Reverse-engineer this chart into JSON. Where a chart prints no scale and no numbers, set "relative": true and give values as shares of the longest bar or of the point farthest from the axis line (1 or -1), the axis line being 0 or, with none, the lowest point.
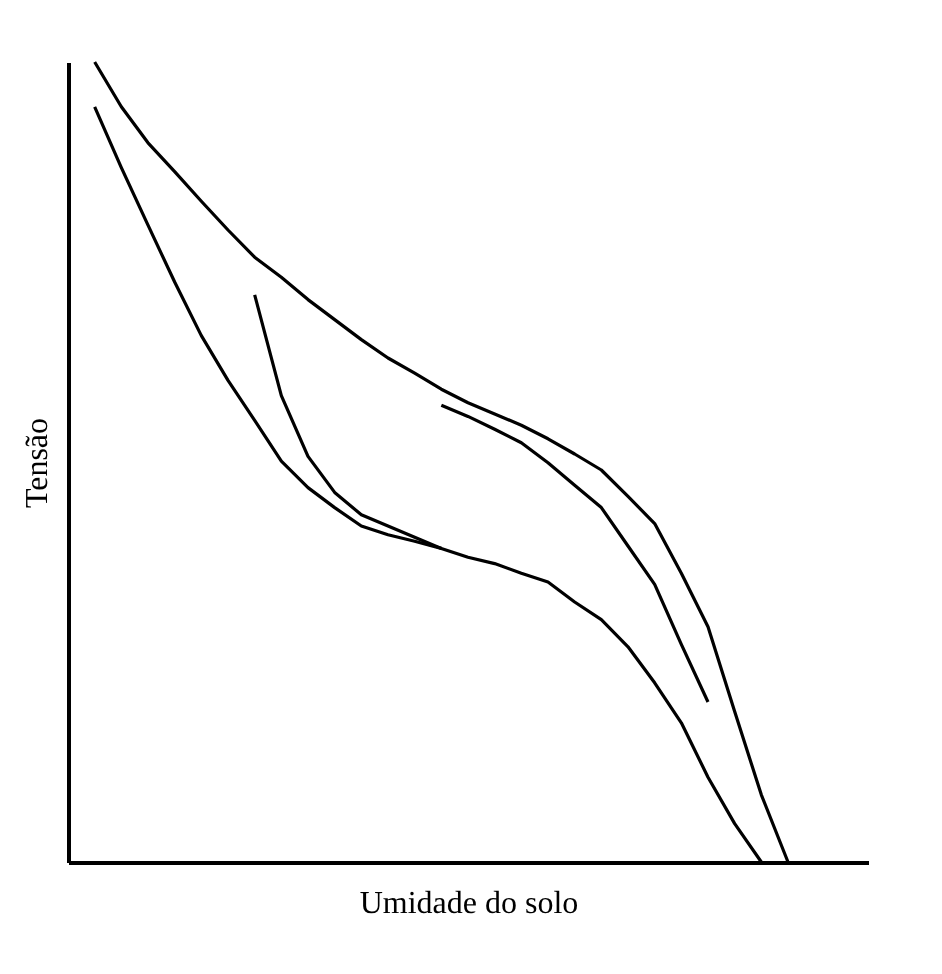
{
  "chart_data": {
    "type": "line",
    "relative": true,
    "xlabel": "Umidade do solo",
    "ylabel": "Tensão",
    "marker": "none",
    "line_style": "solid",
    "grid": false,
    "legend": false,
    "categories": [
      null,
      null,
      null,
      null,
      null,
      null,
      null,
      null,
      null,
      null,
      null,
      null,
      null,
      null,
      null,
      null,
      null,
      null,
      null,
      null,
      null,
      null,
      null,
      null,
      null,
      null,
      null,
      null,
      null,
      null,
      null
    ],
    "series": [
      {
        "color": "#000000",
        "values": [
          null,
          1.0,
          0.944,
          0.899,
          0.863,
          0.826,
          0.79,
          0.756,
          0.731,
          0.703,
          0.678,
          0.653,
          0.63,
          0.611,
          0.591,
          0.574,
          0.56,
          0.546,
          0.529,
          0.51,
          0.49,
          0.457,
          0.423,
          0.361,
          0.294,
          0.188,
          0.084,
          0,
          null,
          null,
          null
        ]
      },
      {
        "color": "#000000",
        "values": [
          null,
          0.944,
          0.868,
          0.796,
          0.725,
          0.658,
          0.602,
          0.552,
          0.501,
          0.468,
          0.443,
          0.42,
          0.409,
          0.401,
          0.392,
          0.381,
          0.373,
          0.361,
          0.35,
          0.325,
          0.303,
          0.269,
          0.224,
          0.174,
          0.106,
          0.048,
          0,
          null,
          null,
          null,
          null
        ]
      },
      {
        "color": "#000000",
        "values": [
          null,
          null,
          null,
          null,
          null,
          null,
          null,
          0.709,
          0.583,
          0.507,
          0.462,
          0.434,
          0.42,
          0.406,
          0.392,
          null,
          null,
          null,
          null,
          null,
          null,
          null,
          null,
          null,
          null,
          null,
          null,
          null,
          null,
          null,
          null
        ]
      },
      {
        "color": "#000000",
        "values": [
          null,
          null,
          null,
          null,
          null,
          null,
          null,
          null,
          null,
          null,
          null,
          null,
          null,
          null,
          0.571,
          0.557,
          0.541,
          0.524,
          0.499,
          0.471,
          0.443,
          0.395,
          0.347,
          0.272,
          0.2,
          null,
          null,
          null,
          null,
          null,
          null
        ]
      }
    ]
  }
}
